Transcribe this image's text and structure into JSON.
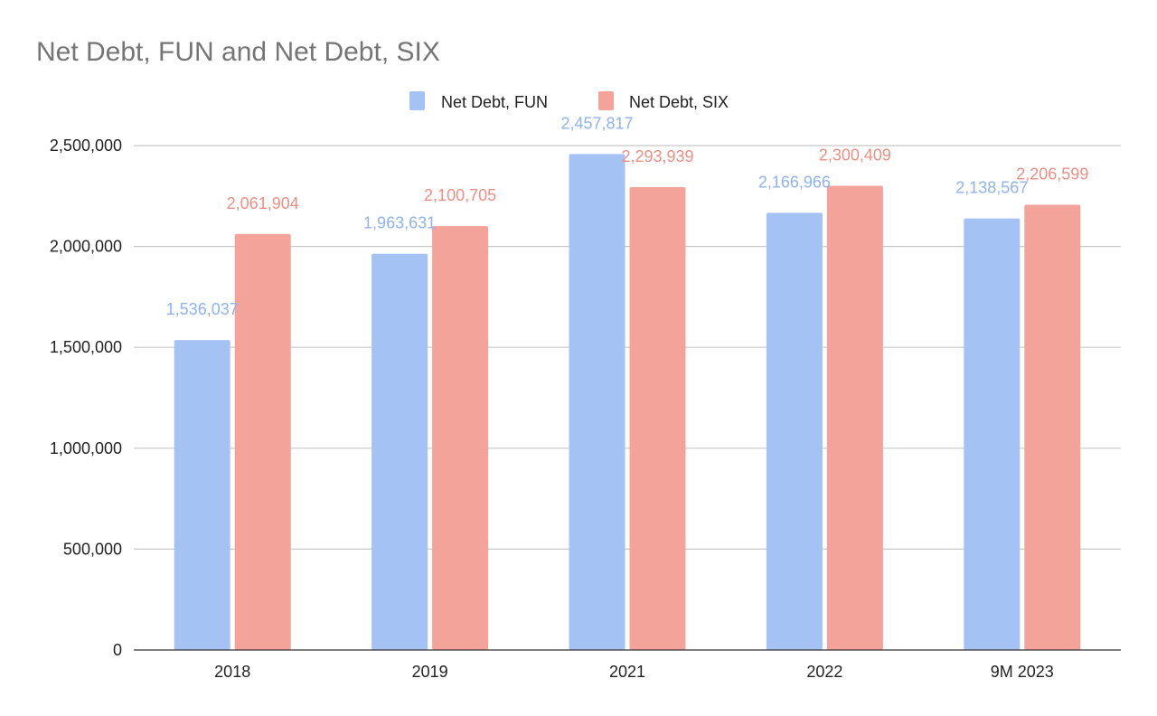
{
  "chart_data": {
    "type": "bar",
    "title": "Net Debt, FUN and Net Debt, SIX",
    "categories": [
      "2018",
      "2019",
      "2021",
      "2022",
      "9M 2023"
    ],
    "series": [
      {
        "name": "Net Debt, FUN",
        "color": "#a4c2f4",
        "values": [
          1536037,
          1963631,
          2457817,
          2166966,
          2138567
        ],
        "labels": [
          "1,536,037",
          "1,963,631",
          "2,457,817",
          "2,166,966",
          "2,138,567"
        ]
      },
      {
        "name": "Net Debt, SIX",
        "color": "#f4a39a",
        "values": [
          2061904,
          2100705,
          2293939,
          2300409,
          2206599
        ],
        "labels": [
          "2,061,904",
          "2,100,705",
          "2,293,939",
          "2,300,409",
          "2,206,599"
        ]
      }
    ],
    "yticks": [
      0,
      500000,
      1000000,
      1500000,
      2000000,
      2500000
    ],
    "ytick_labels": [
      "0",
      "500,000",
      "1,000,000",
      "1,500,000",
      "2,000,000",
      "2,500,000"
    ],
    "ylim": [
      0,
      2500000
    ],
    "xlabel": "",
    "ylabel": "",
    "grid": true,
    "legend_position": "top-center"
  }
}
